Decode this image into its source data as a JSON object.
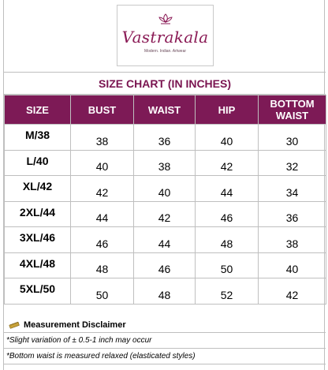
{
  "brand": {
    "name": "Vastrakala",
    "tagline": "Modern. Indian. Artwear",
    "color": "#8a1a55"
  },
  "title": "SIZE CHART  (IN INCHES)",
  "table": {
    "header_color": "#7d1a56",
    "columns": [
      "SIZE",
      "BUST",
      "WAIST",
      "HIP",
      "BOTTOM WAIST"
    ],
    "rows": [
      {
        "size": "M/38",
        "bust": "38",
        "waist": "36",
        "hip": "40",
        "bottom_waist": "30"
      },
      {
        "size": "L/40",
        "bust": "40",
        "waist": "38",
        "hip": "42",
        "bottom_waist": "32"
      },
      {
        "size": "XL/42",
        "bust": "42",
        "waist": "40",
        "hip": "44",
        "bottom_waist": "34"
      },
      {
        "size": "2XL/44",
        "bust": "44",
        "waist": "42",
        "hip": "46",
        "bottom_waist": "36"
      },
      {
        "size": "3XL/46",
        "bust": "46",
        "waist": "44",
        "hip": "48",
        "bottom_waist": "38"
      },
      {
        "size": "4XL/48",
        "bust": "48",
        "waist": "46",
        "hip": "50",
        "bottom_waist": "40"
      },
      {
        "size": "5XL/50",
        "bust": "50",
        "waist": "48",
        "hip": "52",
        "bottom_waist": "42"
      }
    ]
  },
  "disclaimer": {
    "icon": "ruler-icon",
    "heading": "Measurement Disclaimer",
    "notes": [
      "*Slight variation of ± 0.5-1 inch may occur",
      "*Bottom waist is measured relaxed (elasticated styles)"
    ]
  }
}
